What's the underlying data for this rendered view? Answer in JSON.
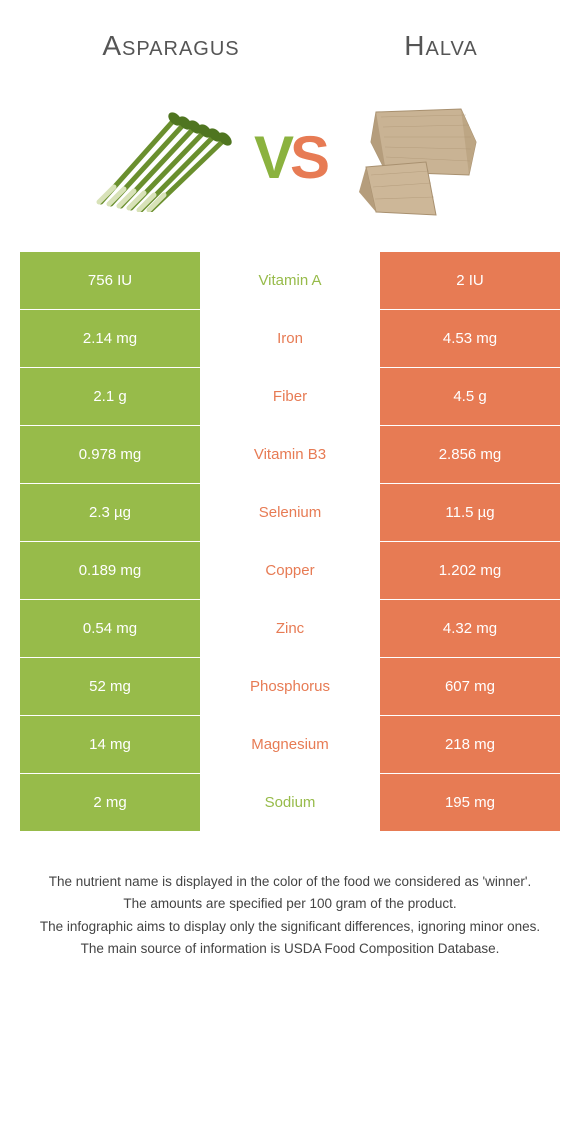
{
  "titles": {
    "left": "Asparagus",
    "right": "Halva"
  },
  "vs": {
    "v": "V",
    "s": "S"
  },
  "colors": {
    "left_bg": "#97bb4a",
    "right_bg": "#e77b54",
    "left_text": "#97bb4a",
    "right_text": "#e77b54",
    "row_border": "#ffffff",
    "title_color": "#555555",
    "footer_color": "#444444",
    "background": "#ffffff"
  },
  "rows": [
    {
      "left": "756 IU",
      "name": "Vitamin A",
      "right": "2 IU",
      "winner": "left"
    },
    {
      "left": "2.14 mg",
      "name": "Iron",
      "right": "4.53 mg",
      "winner": "right"
    },
    {
      "left": "2.1 g",
      "name": "Fiber",
      "right": "4.5 g",
      "winner": "right"
    },
    {
      "left": "0.978 mg",
      "name": "Vitamin B3",
      "right": "2.856 mg",
      "winner": "right"
    },
    {
      "left": "2.3 µg",
      "name": "Selenium",
      "right": "11.5 µg",
      "winner": "right"
    },
    {
      "left": "0.189 mg",
      "name": "Copper",
      "right": "1.202 mg",
      "winner": "right"
    },
    {
      "left": "0.54 mg",
      "name": "Zinc",
      "right": "4.32 mg",
      "winner": "right"
    },
    {
      "left": "52 mg",
      "name": "Phosphorus",
      "right": "607 mg",
      "winner": "right"
    },
    {
      "left": "14 mg",
      "name": "Magnesium",
      "right": "218 mg",
      "winner": "right"
    },
    {
      "left": "2 mg",
      "name": "Sodium",
      "right": "195 mg",
      "winner": "left"
    }
  ],
  "footer": [
    "The nutrient name is displayed in the color of the food we considered as 'winner'.",
    "The amounts are specified per 100 gram of the product.",
    "The infographic aims to display only the significant differences, ignoring minor ones.",
    "The main source of information is USDA Food Composition Database."
  ],
  "fontsizes": {
    "title": 28,
    "vs": 60,
    "cell": 15,
    "footer": 13.5
  }
}
